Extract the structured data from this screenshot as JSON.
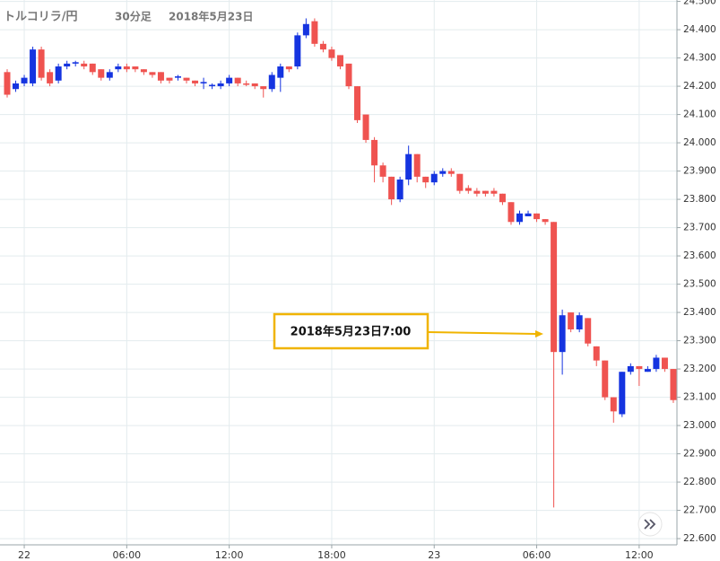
{
  "chart_data": {
    "type": "candlestick",
    "title": "トルコリラ/円",
    "interval": "30分足",
    "date": "2018年5月23日",
    "annotation": "2018年5月23日7:00",
    "up_color": "#1534e0",
    "down_color": "#ef5350",
    "grid": true,
    "categories": [
      null,
      null,
      "22",
      null,
      null,
      null,
      null,
      null,
      null,
      null,
      null,
      null,
      null,
      null,
      "06:00",
      null,
      null,
      null,
      null,
      null,
      null,
      null,
      null,
      null,
      null,
      null,
      "12:00",
      null,
      null,
      null,
      null,
      null,
      null,
      null,
      null,
      null,
      null,
      null,
      "18:00",
      null,
      null,
      null,
      null,
      null,
      null,
      null,
      null,
      null,
      null,
      null,
      "23",
      null,
      null,
      null,
      null,
      null,
      null,
      null,
      null,
      null,
      null,
      null,
      "06:00",
      null,
      null,
      null,
      null,
      null,
      null,
      null,
      null,
      null,
      null,
      null,
      "12:00",
      null,
      null,
      null,
      null
    ],
    "open": [
      24.25,
      24.19,
      24.21,
      24.21,
      24.33,
      24.25,
      24.22,
      24.27,
      24.28,
      24.28,
      24.28,
      24.26,
      24.23,
      24.26,
      24.27,
      24.27,
      24.26,
      24.25,
      24.25,
      24.23,
      24.23,
      24.23,
      24.22,
      24.21,
      24.2,
      24.2,
      24.21,
      24.23,
      24.21,
      24.21,
      24.2,
      24.19,
      24.23,
      24.27,
      24.27,
      24.38,
      24.43,
      24.35,
      24.33,
      24.31,
      24.28,
      24.2,
      24.1,
      24.01,
      23.92,
      23.88,
      23.8,
      23.87,
      23.96,
      23.88,
      23.86,
      23.89,
      23.9,
      23.89,
      23.84,
      23.83,
      23.83,
      23.83,
      23.82,
      23.79,
      23.72,
      23.74,
      23.75,
      23.73,
      23.72,
      23.26,
      23.4,
      23.34,
      23.38,
      23.28,
      23.23,
      23.1,
      23.04,
      23.19,
      23.21,
      23.19,
      23.2,
      23.24,
      23.2
    ],
    "high": [
      24.26,
      24.22,
      24.24,
      24.34,
      24.34,
      24.26,
      24.28,
      24.29,
      24.29,
      24.29,
      24.28,
      24.26,
      24.26,
      24.28,
      24.28,
      24.27,
      24.26,
      24.25,
      24.25,
      24.23,
      24.24,
      24.23,
      24.22,
      24.23,
      24.21,
      24.22,
      24.24,
      24.23,
      24.22,
      24.21,
      24.2,
      24.25,
      24.28,
      24.27,
      24.39,
      24.44,
      24.44,
      24.36,
      24.34,
      24.31,
      24.28,
      24.2,
      24.1,
      24.02,
      23.93,
      23.88,
      23.88,
      23.99,
      23.96,
      23.88,
      23.9,
      23.91,
      23.91,
      23.89,
      23.85,
      23.84,
      23.83,
      23.84,
      23.82,
      23.79,
      23.76,
      23.76,
      23.75,
      23.73,
      23.72,
      23.41,
      23.4,
      23.4,
      23.38,
      23.28,
      23.23,
      23.1,
      23.19,
      23.22,
      23.21,
      23.21,
      23.25,
      23.24,
      23.2
    ],
    "low": [
      24.16,
      24.18,
      24.2,
      24.2,
      24.22,
      24.2,
      24.21,
      24.26,
      24.27,
      24.26,
      24.24,
      24.22,
      24.22,
      24.25,
      24.25,
      24.25,
      24.24,
      24.23,
      24.21,
      24.21,
      24.22,
      24.21,
      24.2,
      24.19,
      24.19,
      24.19,
      24.2,
      24.2,
      24.2,
      24.19,
      24.16,
      24.18,
      24.18,
      24.25,
      24.26,
      24.37,
      24.34,
      24.32,
      24.29,
      24.26,
      24.19,
      24.07,
      24.0,
      23.86,
      23.86,
      23.78,
      23.79,
      23.85,
      23.86,
      23.84,
      23.85,
      23.88,
      23.88,
      23.82,
      23.82,
      23.81,
      23.81,
      23.81,
      23.78,
      23.71,
      23.71,
      23.74,
      23.72,
      23.71,
      22.71,
      23.18,
      23.33,
      23.33,
      23.28,
      23.21,
      23.09,
      23.01,
      23.03,
      23.18,
      23.14,
      23.19,
      23.19,
      23.19,
      23.08
    ],
    "close": [
      24.17,
      24.21,
      24.23,
      24.33,
      24.23,
      24.21,
      24.27,
      24.28,
      24.285,
      24.27,
      24.25,
      24.23,
      24.25,
      24.27,
      24.26,
      24.26,
      24.25,
      24.24,
      24.22,
      24.22,
      24.235,
      24.22,
      24.21,
      24.215,
      24.205,
      24.21,
      24.23,
      24.21,
      24.205,
      24.2,
      24.19,
      24.24,
      24.27,
      24.26,
      24.38,
      24.42,
      24.35,
      24.33,
      24.3,
      24.27,
      24.2,
      24.08,
      24.01,
      23.92,
      23.88,
      23.8,
      23.87,
      23.96,
      23.88,
      23.86,
      23.89,
      23.9,
      23.89,
      23.83,
      23.83,
      23.82,
      23.82,
      23.82,
      23.79,
      23.72,
      23.75,
      23.75,
      23.73,
      23.72,
      23.26,
      23.39,
      23.34,
      23.39,
      23.29,
      23.23,
      23.1,
      23.05,
      23.19,
      23.21,
      23.2,
      23.2,
      23.24,
      23.2,
      23.09
    ],
    "ylim": [
      22.578,
      24.505
    ],
    "yticks": [
      {
        "value": 22.6,
        "label": "22.600"
      },
      {
        "value": 22.7,
        "label": "22.700"
      },
      {
        "value": 22.8,
        "label": "22.800"
      },
      {
        "value": 22.9,
        "label": "22.900"
      },
      {
        "value": 23,
        "label": "23.000"
      },
      {
        "value": 23.1,
        "label": "23.100"
      },
      {
        "value": 23.2,
        "label": "23.200"
      },
      {
        "value": 23.3,
        "label": "23.300"
      },
      {
        "value": 23.4,
        "label": "23.400"
      },
      {
        "value": 23.5,
        "label": "23.500"
      },
      {
        "value": 23.6,
        "label": "23.600"
      },
      {
        "value": 23.7,
        "label": "23.700"
      },
      {
        "value": 23.8,
        "label": "23.800"
      },
      {
        "value": 23.9,
        "label": "23.900"
      },
      {
        "value": 24,
        "label": "24.000"
      },
      {
        "value": 24.1,
        "label": "24.100"
      },
      {
        "value": 24.2,
        "label": "24.200"
      },
      {
        "value": 24.3,
        "label": "24.300"
      },
      {
        "value": 24.4,
        "label": "24.400"
      },
      {
        "value": 24.5,
        "label": "24.500"
      }
    ]
  }
}
